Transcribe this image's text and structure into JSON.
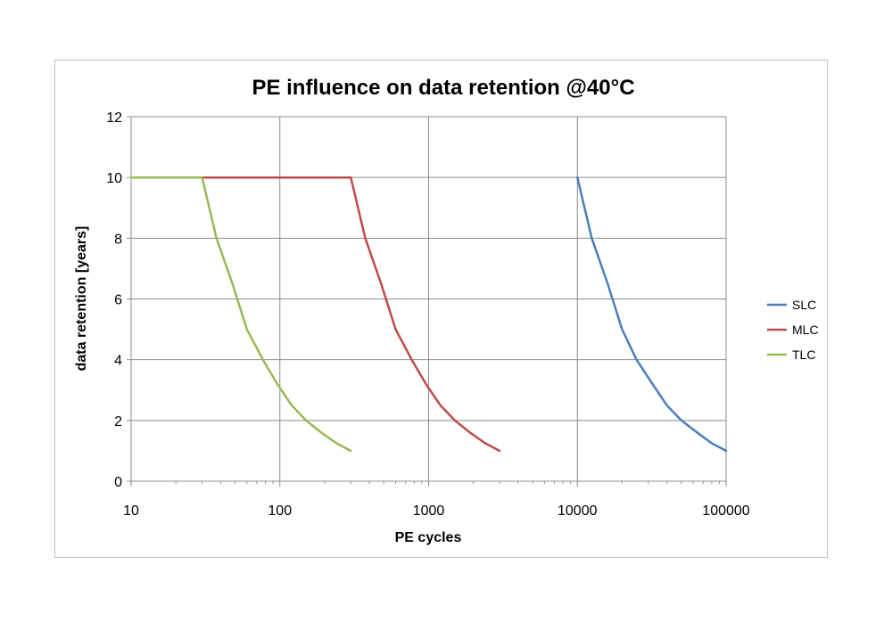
{
  "chart_data": {
    "type": "line",
    "title": "PE influence on data retention @40°C",
    "xlabel": "PE cycles",
    "ylabel": "data retention [years]",
    "xscale": "log",
    "xlim": [
      10,
      100000
    ],
    "ylim": [
      0,
      12
    ],
    "xticks": [
      10,
      100,
      1000,
      10000,
      100000
    ],
    "xtick_labels": [
      "10",
      "100",
      "1000",
      "10000",
      "100000"
    ],
    "yticks": [
      0,
      2,
      4,
      6,
      8,
      10,
      12
    ],
    "ytick_labels": [
      "0",
      "2",
      "4",
      "6",
      "8",
      "10",
      "12"
    ],
    "grid": true,
    "legend_position": "right",
    "series": [
      {
        "name": "SLC",
        "color": "#4a7ebb",
        "x": [
          10000,
          12500,
          16000,
          20000,
          25000,
          32000,
          40000,
          50000,
          64000,
          80000,
          100000
        ],
        "y": [
          10,
          8,
          6.5,
          5,
          4,
          3.2,
          2.5,
          2,
          1.6,
          1.25,
          1
        ]
      },
      {
        "name": "MLC",
        "color": "#be4b48",
        "x": [
          30,
          300,
          375,
          480,
          600,
          770,
          960,
          1200,
          1500,
          1900,
          2400,
          3000
        ],
        "y": [
          10,
          10,
          8,
          6.5,
          5,
          4,
          3.2,
          2.5,
          2,
          1.6,
          1.25,
          1
        ]
      },
      {
        "name": "TLC",
        "color": "#98b954",
        "x": [
          10,
          30,
          37.5,
          48,
          60,
          77,
          96,
          120,
          150,
          190,
          240,
          300
        ],
        "y": [
          10,
          10,
          8,
          6.5,
          5,
          4,
          3.2,
          2.5,
          2,
          1.6,
          1.25,
          1
        ]
      }
    ]
  }
}
